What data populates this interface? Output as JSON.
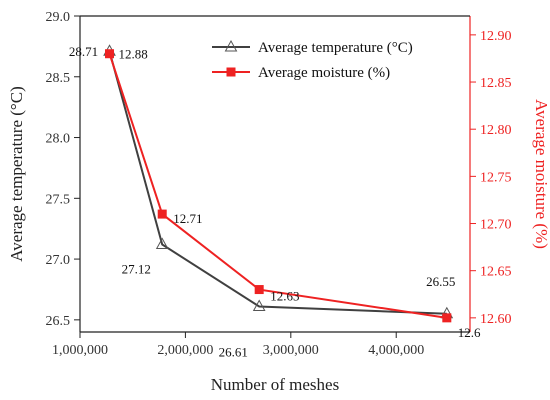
{
  "chart_data": {
    "type": "line",
    "title": "",
    "xlabel": "Number of meshes",
    "ylabel_left": "Average temperature (°C)",
    "ylabel_right": "Average moisture (%)",
    "xlim": [
      1000000,
      4700000
    ],
    "ylim_left": [
      26.4,
      29.0
    ],
    "ylim_right": [
      12.585,
      12.92
    ],
    "x_ticks": [
      1000000,
      2000000,
      3000000,
      4000000
    ],
    "x_tick_labels": [
      "1,000,000",
      "2,000,000",
      "3,000,000",
      "4,000,000"
    ],
    "y_left_ticks": [
      26.5,
      27.0,
      27.5,
      28.0,
      28.5,
      29.0
    ],
    "y_left_tick_labels": [
      "26.5",
      "27.0",
      "27.5",
      "28.0",
      "28.5",
      "29.0"
    ],
    "y_right_ticks": [
      12.6,
      12.65,
      12.7,
      12.75,
      12.8,
      12.85,
      12.9
    ],
    "y_right_tick_labels": [
      "12.60",
      "12.65",
      "12.70",
      "12.75",
      "12.80",
      "12.85",
      "12.90"
    ],
    "legend_position": "top-right",
    "grid": false,
    "series": [
      {
        "name": "Average temperature (°C)",
        "axis": "left",
        "color": "#404040",
        "marker": "triangle-open",
        "x": [
          1280000,
          1780000,
          2700000,
          4480000
        ],
        "values": [
          28.71,
          27.12,
          26.61,
          26.55
        ],
        "labels": [
          "28.71",
          "27.12",
          "26.61",
          "26.55"
        ]
      },
      {
        "name": "Average moisture (%)",
        "axis": "right",
        "color": "#ee2222",
        "marker": "square",
        "x": [
          1280000,
          1780000,
          2700000,
          4480000
        ],
        "values": [
          12.88,
          12.71,
          12.63,
          12.6
        ],
        "labels": [
          "12.88",
          "12.71",
          "12.63",
          "12.6"
        ]
      }
    ]
  }
}
